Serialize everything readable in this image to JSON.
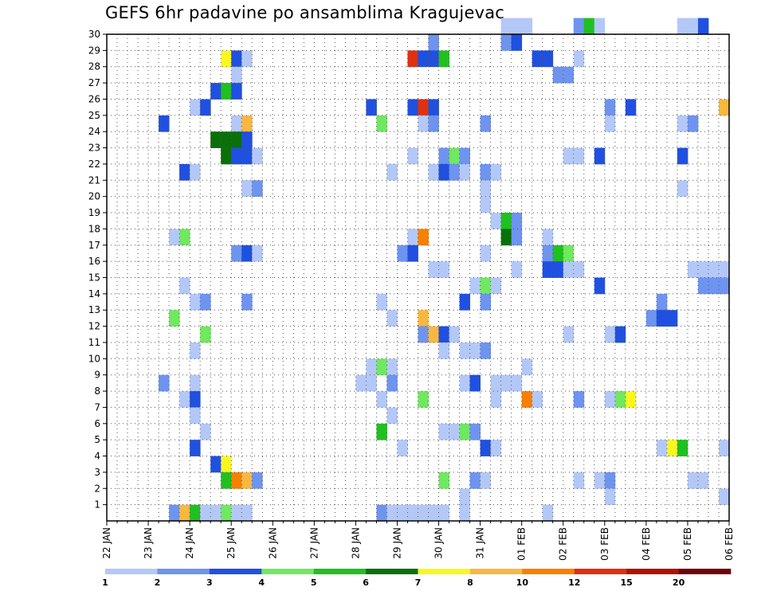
{
  "chart_data": {
    "type": "heatmap",
    "title": "GEFS 6hr padavine po ansamblima Kragujevac",
    "y_ticks": [
      1,
      2,
      3,
      4,
      5,
      6,
      7,
      8,
      9,
      10,
      11,
      12,
      13,
      14,
      15,
      16,
      17,
      18,
      19,
      20,
      21,
      22,
      23,
      24,
      25,
      26,
      27,
      28,
      29,
      30
    ],
    "ylim": [
      0,
      30
    ],
    "x_ticks": [
      "22 JAN",
      "23 JAN",
      "24 JAN",
      "25 JAN",
      "26 JAN",
      "27 JAN",
      "28 JAN",
      "29 JAN",
      "30 JAN",
      "31 JAN",
      "01 FEB",
      "02 FEB",
      "03 FEB",
      "04 FEB",
      "05 FEB",
      "06 FEB"
    ],
    "x_steps_per_day": 4,
    "x_steps_total": 60,
    "grid": true,
    "legend": {
      "placement": "bottom",
      "thresholds": [
        "1",
        "2",
        "3",
        "4",
        "5",
        "6",
        "7",
        "8",
        "10",
        "12",
        "15",
        "20"
      ],
      "colors": [
        "#b4c8f8",
        "#6e94f0",
        "#2050e0",
        "#70e860",
        "#20c020",
        "#0a700a",
        "#f8f820",
        "#f8b840",
        "#f88000",
        "#e03010",
        "#b01000",
        "#700008"
      ]
    },
    "cells": [
      [
        30,
        38,
        0
      ],
      [
        30,
        39,
        0
      ],
      [
        30,
        40,
        0
      ],
      [
        30,
        45,
        1
      ],
      [
        30,
        46,
        4
      ],
      [
        30,
        47,
        0
      ],
      [
        30,
        55,
        0
      ],
      [
        30,
        56,
        0
      ],
      [
        30,
        57,
        2
      ],
      [
        29,
        31,
        1
      ],
      [
        29,
        38,
        1
      ],
      [
        29,
        39,
        2
      ],
      [
        28,
        11,
        6
      ],
      [
        28,
        12,
        2
      ],
      [
        28,
        13,
        0
      ],
      [
        28,
        29,
        9
      ],
      [
        28,
        30,
        2
      ],
      [
        28,
        31,
        2
      ],
      [
        28,
        32,
        4
      ],
      [
        28,
        41,
        2
      ],
      [
        28,
        42,
        2
      ],
      [
        28,
        45,
        0
      ],
      [
        27,
        12,
        0
      ],
      [
        27,
        43,
        1
      ],
      [
        27,
        44,
        1
      ],
      [
        26,
        10,
        2
      ],
      [
        26,
        11,
        4
      ],
      [
        26,
        12,
        2
      ],
      [
        25,
        8,
        0
      ],
      [
        25,
        9,
        2
      ],
      [
        25,
        25,
        2
      ],
      [
        25,
        29,
        2
      ],
      [
        25,
        30,
        9
      ],
      [
        25,
        31,
        2
      ],
      [
        25,
        48,
        1
      ],
      [
        25,
        50,
        2
      ],
      [
        25,
        59,
        7
      ],
      [
        24,
        5,
        2
      ],
      [
        24,
        12,
        0
      ],
      [
        24,
        13,
        7
      ],
      [
        24,
        26,
        3
      ],
      [
        24,
        30,
        0
      ],
      [
        24,
        31,
        1
      ],
      [
        24,
        36,
        1
      ],
      [
        24,
        48,
        0
      ],
      [
        24,
        55,
        0
      ],
      [
        24,
        56,
        1
      ],
      [
        23,
        10,
        5
      ],
      [
        23,
        11,
        5
      ],
      [
        23,
        12,
        5
      ],
      [
        23,
        13,
        2
      ],
      [
        22,
        11,
        5
      ],
      [
        22,
        12,
        2
      ],
      [
        22,
        13,
        2
      ],
      [
        22,
        14,
        0
      ],
      [
        22,
        29,
        0
      ],
      [
        22,
        32,
        1
      ],
      [
        22,
        33,
        3
      ],
      [
        22,
        34,
        1
      ],
      [
        22,
        44,
        0
      ],
      [
        22,
        45,
        0
      ],
      [
        22,
        47,
        2
      ],
      [
        22,
        55,
        2
      ],
      [
        21,
        7,
        2
      ],
      [
        21,
        8,
        0
      ],
      [
        21,
        27,
        0
      ],
      [
        21,
        31,
        0
      ],
      [
        21,
        32,
        2
      ],
      [
        21,
        33,
        1
      ],
      [
        21,
        34,
        0
      ],
      [
        21,
        36,
        1
      ],
      [
        21,
        37,
        0
      ],
      [
        20,
        13,
        0
      ],
      [
        20,
        14,
        1
      ],
      [
        20,
        36,
        0
      ],
      [
        20,
        55,
        0
      ],
      [
        19,
        36,
        0
      ],
      [
        18,
        37,
        0
      ],
      [
        18,
        38,
        4
      ],
      [
        18,
        39,
        1
      ],
      [
        17,
        6,
        0
      ],
      [
        17,
        7,
        3
      ],
      [
        17,
        29,
        0
      ],
      [
        17,
        30,
        8
      ],
      [
        17,
        38,
        5
      ],
      [
        17,
        39,
        1
      ],
      [
        17,
        42,
        0
      ],
      [
        16,
        12,
        1
      ],
      [
        16,
        13,
        2
      ],
      [
        16,
        14,
        0
      ],
      [
        16,
        28,
        1
      ],
      [
        16,
        29,
        2
      ],
      [
        16,
        36,
        0
      ],
      [
        16,
        42,
        1
      ],
      [
        16,
        43,
        4
      ],
      [
        16,
        44,
        3
      ],
      [
        15,
        31,
        0
      ],
      [
        15,
        32,
        0
      ],
      [
        15,
        39,
        0
      ],
      [
        15,
        42,
        2
      ],
      [
        15,
        43,
        2
      ],
      [
        15,
        44,
        0
      ],
      [
        15,
        45,
        0
      ],
      [
        15,
        56,
        0
      ],
      [
        15,
        57,
        0
      ],
      [
        15,
        58,
        0
      ],
      [
        15,
        59,
        0
      ],
      [
        14,
        7,
        0
      ],
      [
        14,
        35,
        0
      ],
      [
        14,
        36,
        3
      ],
      [
        14,
        37,
        0
      ],
      [
        14,
        47,
        2
      ],
      [
        14,
        57,
        1
      ],
      [
        14,
        58,
        1
      ],
      [
        14,
        59,
        1
      ],
      [
        13,
        8,
        0
      ],
      [
        13,
        9,
        1
      ],
      [
        13,
        13,
        1
      ],
      [
        13,
        26,
        0
      ],
      [
        13,
        34,
        2
      ],
      [
        13,
        36,
        1
      ],
      [
        13,
        53,
        1
      ],
      [
        12,
        6,
        3
      ],
      [
        12,
        27,
        0
      ],
      [
        12,
        30,
        7
      ],
      [
        12,
        52,
        1
      ],
      [
        12,
        53,
        2
      ],
      [
        12,
        54,
        2
      ],
      [
        11,
        9,
        3
      ],
      [
        11,
        30,
        1
      ],
      [
        11,
        31,
        7
      ],
      [
        11,
        32,
        2
      ],
      [
        11,
        33,
        0
      ],
      [
        11,
        44,
        0
      ],
      [
        11,
        48,
        0
      ],
      [
        11,
        49,
        2
      ],
      [
        10,
        8,
        0
      ],
      [
        10,
        32,
        0
      ],
      [
        10,
        34,
        0
      ],
      [
        10,
        35,
        0
      ],
      [
        10,
        36,
        1
      ],
      [
        9,
        25,
        0
      ],
      [
        9,
        26,
        3
      ],
      [
        9,
        27,
        0
      ],
      [
        9,
        40,
        0
      ],
      [
        8,
        5,
        1
      ],
      [
        8,
        8,
        0
      ],
      [
        8,
        24,
        0
      ],
      [
        8,
        25,
        0
      ],
      [
        8,
        27,
        1
      ],
      [
        8,
        34,
        0
      ],
      [
        8,
        35,
        2
      ],
      [
        8,
        37,
        0
      ],
      [
        8,
        38,
        0
      ],
      [
        8,
        39,
        0
      ],
      [
        7,
        7,
        0
      ],
      [
        7,
        8,
        2
      ],
      [
        7,
        26,
        0
      ],
      [
        7,
        30,
        3
      ],
      [
        7,
        37,
        0
      ],
      [
        7,
        40,
        8
      ],
      [
        7,
        41,
        0
      ],
      [
        7,
        45,
        1
      ],
      [
        7,
        48,
        0
      ],
      [
        7,
        49,
        3
      ],
      [
        7,
        50,
        6
      ],
      [
        6,
        8,
        0
      ],
      [
        6,
        27,
        0
      ],
      [
        5,
        9,
        0
      ],
      [
        5,
        26,
        4
      ],
      [
        5,
        32,
        0
      ],
      [
        5,
        33,
        0
      ],
      [
        5,
        34,
        3
      ],
      [
        5,
        35,
        1
      ],
      [
        4,
        8,
        2
      ],
      [
        4,
        28,
        0
      ],
      [
        4,
        36,
        2
      ],
      [
        4,
        37,
        0
      ],
      [
        4,
        53,
        0
      ],
      [
        4,
        54,
        6
      ],
      [
        4,
        55,
        4
      ],
      [
        4,
        59,
        0
      ],
      [
        3,
        10,
        2
      ],
      [
        3,
        11,
        6
      ],
      [
        2,
        11,
        4
      ],
      [
        2,
        12,
        8
      ],
      [
        2,
        13,
        7
      ],
      [
        2,
        14,
        1
      ],
      [
        2,
        32,
        3
      ],
      [
        2,
        35,
        1
      ],
      [
        2,
        36,
        0
      ],
      [
        2,
        45,
        0
      ],
      [
        2,
        47,
        0
      ],
      [
        2,
        48,
        1
      ],
      [
        2,
        56,
        0
      ],
      [
        2,
        57,
        0
      ],
      [
        1,
        34,
        0
      ],
      [
        1,
        48,
        0
      ],
      [
        1,
        59,
        0
      ],
      [
        0,
        6,
        1
      ],
      [
        0,
        7,
        7
      ],
      [
        0,
        8,
        4
      ],
      [
        0,
        9,
        0
      ],
      [
        0,
        10,
        0
      ],
      [
        0,
        11,
        3
      ],
      [
        0,
        12,
        0
      ],
      [
        0,
        13,
        0
      ],
      [
        0,
        26,
        1
      ],
      [
        0,
        27,
        0
      ],
      [
        0,
        28,
        0
      ],
      [
        0,
        29,
        0
      ],
      [
        0,
        30,
        0
      ],
      [
        0,
        31,
        0
      ],
      [
        0,
        32,
        0
      ],
      [
        0,
        34,
        0
      ],
      [
        0,
        42,
        0
      ]
    ]
  }
}
